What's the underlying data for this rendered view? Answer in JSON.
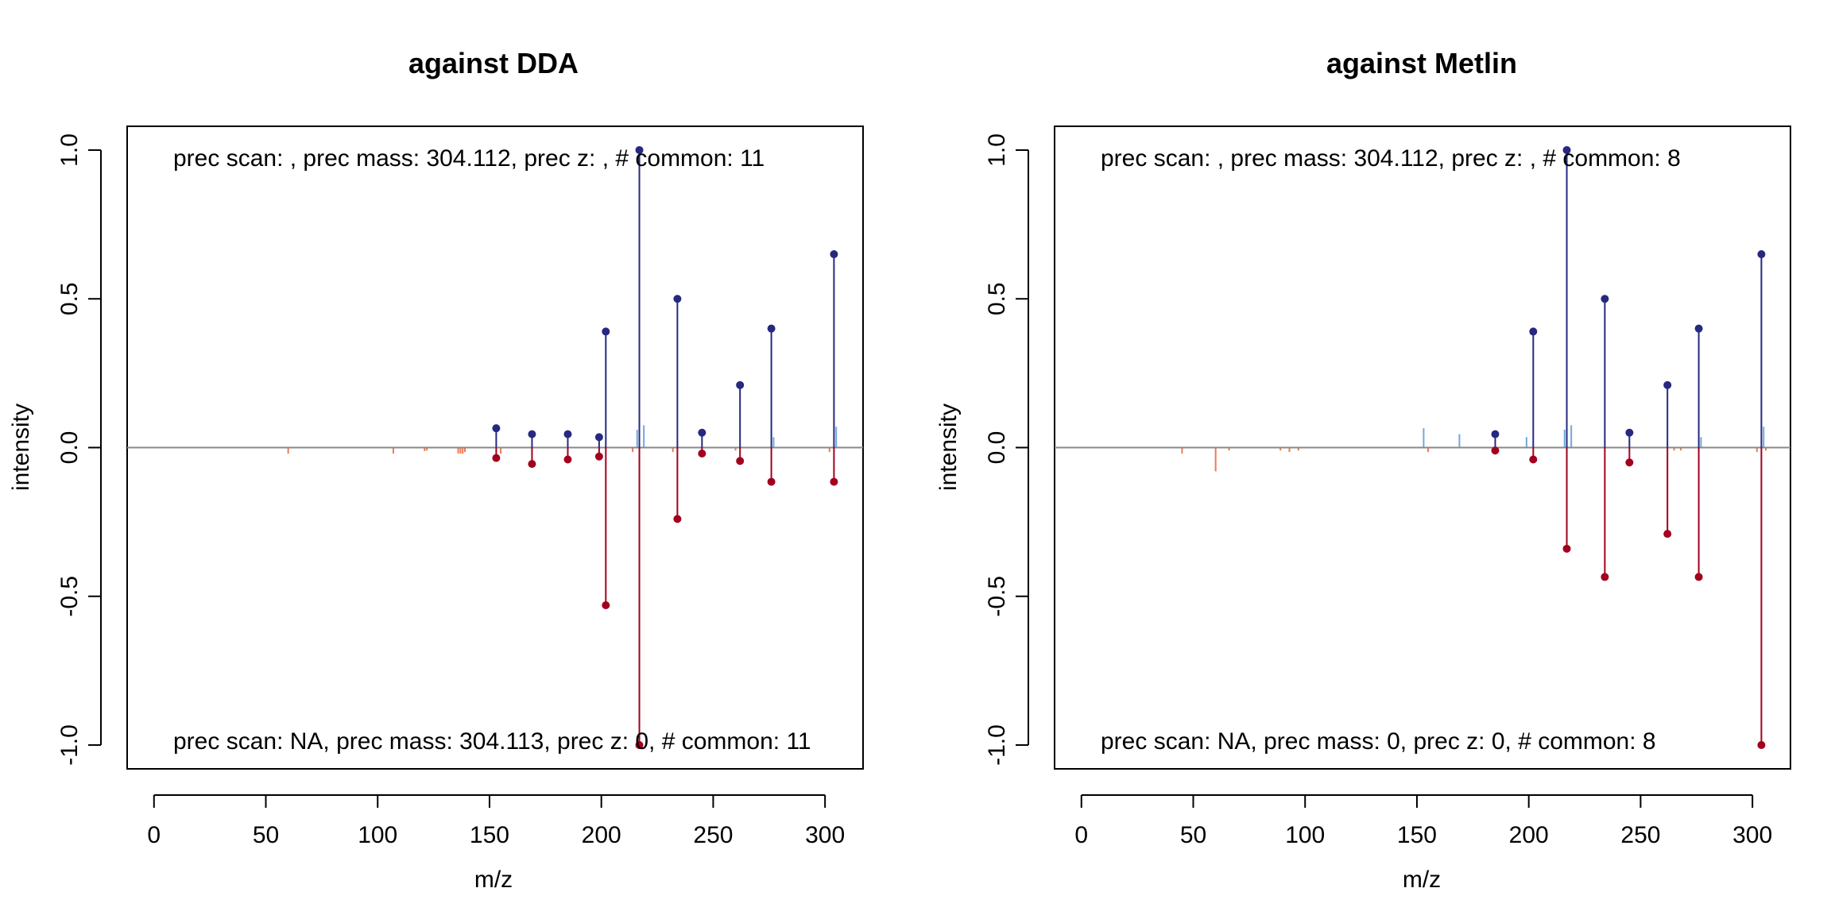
{
  "colors": {
    "matched_top": "#26297F",
    "matched_bottom": "#A3001E",
    "unmatched_top": "#6FA8DC",
    "unmatched_bottom": "#F07A4F",
    "zero_line": "#888888",
    "frame": "#000000"
  },
  "chart_data": [
    {
      "type": "mirror-stick",
      "title": "against DDA",
      "xlabel": "m/z",
      "ylabel": "intensity",
      "xlim": [
        -12,
        317
      ],
      "ylim": [
        -1.08,
        1.08
      ],
      "x_ticks": [
        0,
        50,
        100,
        150,
        200,
        250,
        300
      ],
      "x_tick_labels": [
        "0",
        "50",
        "100",
        "150",
        "200",
        "250",
        "300"
      ],
      "y_ticks": [
        -1.0,
        -0.5,
        0.0,
        0.5,
        1.0
      ],
      "y_tick_labels": [
        "-1.0",
        "-0.5",
        "0.0",
        "0.5",
        "1.0"
      ],
      "grid": false,
      "top_annotation": "prec scan: , prec mass: 304.112, prec z: , # common: 11",
      "bottom_annotation": "prec scan: NA, prec mass: 304.113, prec z: 0, # common: 11",
      "matched": [
        {
          "mz": 153.0,
          "top": 0.065,
          "bottom": -0.035
        },
        {
          "mz": 169.0,
          "top": 0.045,
          "bottom": -0.055
        },
        {
          "mz": 185.0,
          "top": 0.045,
          "bottom": -0.04
        },
        {
          "mz": 199.0,
          "top": 0.035,
          "bottom": -0.03
        },
        {
          "mz": 202.0,
          "top": 0.39,
          "bottom": -0.53
        },
        {
          "mz": 217.0,
          "top": 1.0,
          "bottom": -1.0
        },
        {
          "mz": 234.0,
          "top": 0.5,
          "bottom": -0.24
        },
        {
          "mz": 245.0,
          "top": 0.05,
          "bottom": -0.02
        },
        {
          "mz": 262.0,
          "top": 0.21,
          "bottom": -0.045
        },
        {
          "mz": 276.0,
          "top": 0.4,
          "bottom": -0.115
        },
        {
          "mz": 304.0,
          "top": 0.65,
          "bottom": -0.115
        }
      ],
      "unmatched_top": [
        {
          "mz": 216.0,
          "value": 0.06
        },
        {
          "mz": 219.0,
          "value": 0.075
        },
        {
          "mz": 277.0,
          "value": 0.035
        },
        {
          "mz": 305.0,
          "value": 0.07
        }
      ],
      "unmatched_bottom": [
        {
          "mz": 60.0,
          "value": -0.02
        },
        {
          "mz": 107.0,
          "value": -0.02
        },
        {
          "mz": 121.0,
          "value": -0.012
        },
        {
          "mz": 122.0,
          "value": -0.01
        },
        {
          "mz": 136.0,
          "value": -0.02
        },
        {
          "mz": 137.0,
          "value": -0.02
        },
        {
          "mz": 138.0,
          "value": -0.02
        },
        {
          "mz": 139.0,
          "value": -0.015
        },
        {
          "mz": 155.0,
          "value": -0.02
        },
        {
          "mz": 214.0,
          "value": -0.015
        },
        {
          "mz": 232.0,
          "value": -0.015
        },
        {
          "mz": 260.0,
          "value": -0.01
        },
        {
          "mz": 302.0,
          "value": -0.015
        }
      ]
    },
    {
      "type": "mirror-stick",
      "title": "against Metlin",
      "xlabel": "m/z",
      "ylabel": "intensity",
      "xlim": [
        -12,
        317
      ],
      "ylim": [
        -1.08,
        1.08
      ],
      "x_ticks": [
        0,
        50,
        100,
        150,
        200,
        250,
        300
      ],
      "x_tick_labels": [
        "0",
        "50",
        "100",
        "150",
        "200",
        "250",
        "300"
      ],
      "y_ticks": [
        -1.0,
        -0.5,
        0.0,
        0.5,
        1.0
      ],
      "y_tick_labels": [
        "-1.0",
        "-0.5",
        "0.0",
        "0.5",
        "1.0"
      ],
      "grid": false,
      "top_annotation": "prec scan: , prec mass: 304.112, prec z: , # common: 8",
      "bottom_annotation": "prec scan: NA, prec mass: 0, prec z: 0, # common: 8",
      "matched": [
        {
          "mz": 185.0,
          "top": 0.045,
          "bottom": -0.01
        },
        {
          "mz": 202.0,
          "top": 0.39,
          "bottom": -0.04
        },
        {
          "mz": 217.0,
          "top": 1.0,
          "bottom": -0.34
        },
        {
          "mz": 234.0,
          "top": 0.5,
          "bottom": -0.435
        },
        {
          "mz": 245.0,
          "top": 0.05,
          "bottom": -0.05
        },
        {
          "mz": 262.0,
          "top": 0.21,
          "bottom": -0.29
        },
        {
          "mz": 276.0,
          "top": 0.4,
          "bottom": -0.435
        },
        {
          "mz": 304.0,
          "top": 0.65,
          "bottom": -1.0
        }
      ],
      "unmatched_top": [
        {
          "mz": 153.0,
          "value": 0.065
        },
        {
          "mz": 169.0,
          "value": 0.045
        },
        {
          "mz": 199.0,
          "value": 0.035
        },
        {
          "mz": 216.0,
          "value": 0.06
        },
        {
          "mz": 219.0,
          "value": 0.075
        },
        {
          "mz": 277.0,
          "value": 0.035
        },
        {
          "mz": 305.0,
          "value": 0.07
        }
      ],
      "unmatched_bottom": [
        {
          "mz": 45.0,
          "value": -0.02
        },
        {
          "mz": 60.0,
          "value": -0.08
        },
        {
          "mz": 66.0,
          "value": -0.01
        },
        {
          "mz": 89.0,
          "value": -0.01
        },
        {
          "mz": 93.0,
          "value": -0.015
        },
        {
          "mz": 97.0,
          "value": -0.01
        },
        {
          "mz": 155.0,
          "value": -0.015
        },
        {
          "mz": 265.0,
          "value": -0.01
        },
        {
          "mz": 268.0,
          "value": -0.01
        },
        {
          "mz": 302.0,
          "value": -0.015
        },
        {
          "mz": 306.0,
          "value": -0.01
        }
      ]
    }
  ]
}
